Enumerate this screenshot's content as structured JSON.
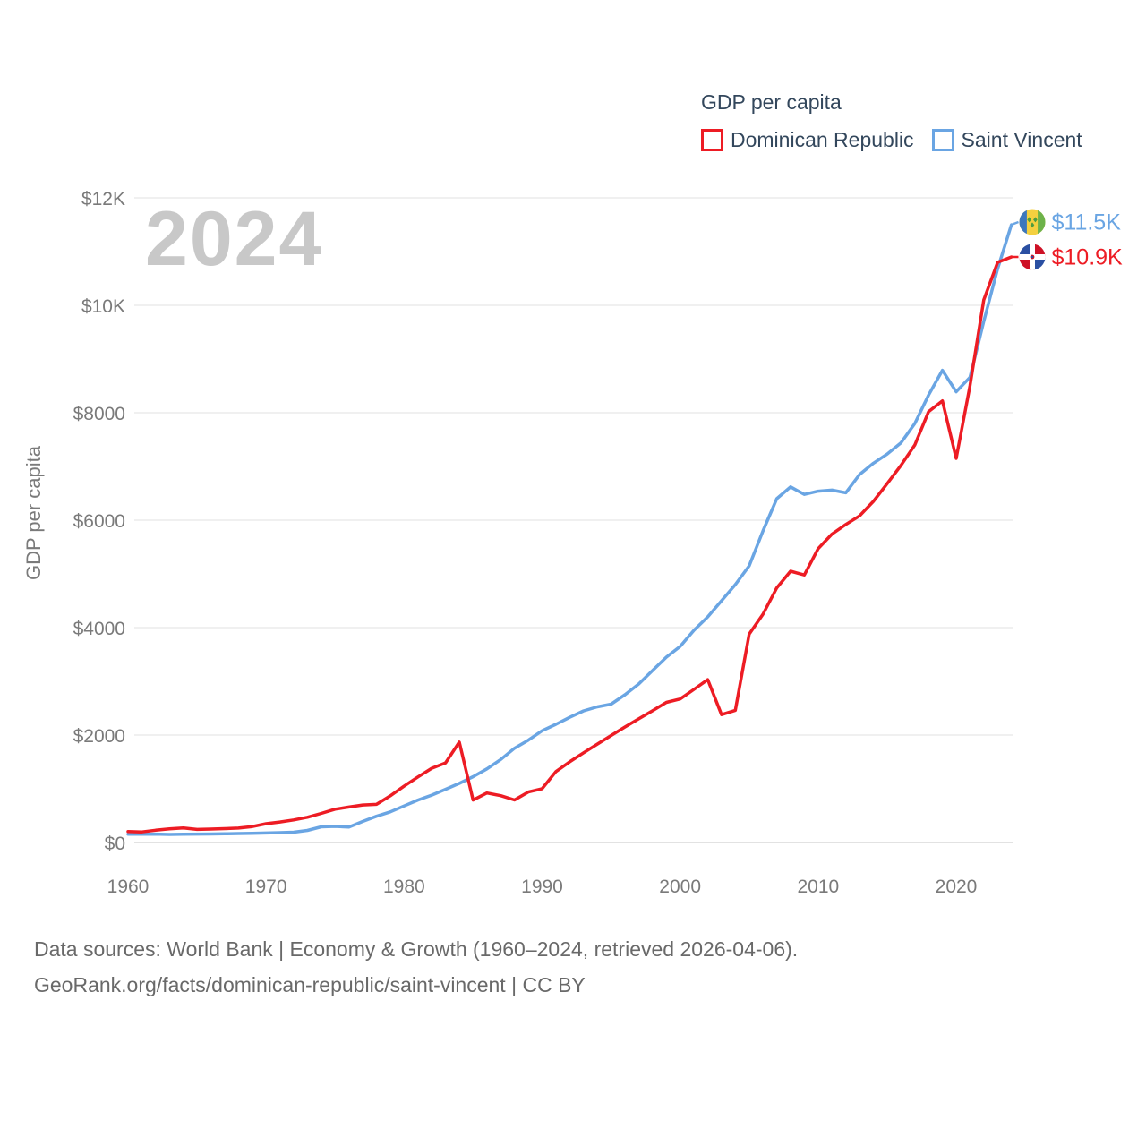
{
  "watermark": "2024",
  "legend": {
    "title": "GDP per capita",
    "items": [
      {
        "label": "Dominican Republic",
        "color": "#ed1c24"
      },
      {
        "label": "Saint Vincent",
        "color": "#6aa5e3"
      }
    ]
  },
  "axes": {
    "y_title": "GDP per capita",
    "y_ticks": [
      {
        "value": 0,
        "label": "$0"
      },
      {
        "value": 2000,
        "label": "$2000"
      },
      {
        "value": 4000,
        "label": "$4000"
      },
      {
        "value": 6000,
        "label": "$6000"
      },
      {
        "value": 8000,
        "label": "$8000"
      },
      {
        "value": 10000,
        "label": "$10K"
      },
      {
        "value": 12000,
        "label": "$12K"
      }
    ],
    "x_ticks": [
      {
        "value": 1960,
        "label": "1960"
      },
      {
        "value": 1970,
        "label": "1970"
      },
      {
        "value": 1980,
        "label": "1980"
      },
      {
        "value": 1990,
        "label": "1990"
      },
      {
        "value": 2000,
        "label": "2000"
      },
      {
        "value": 2010,
        "label": "2010"
      },
      {
        "value": 2020,
        "label": "2020"
      }
    ]
  },
  "chart_data": {
    "type": "line",
    "title": "GDP per capita",
    "xlabel": "",
    "ylabel": "GDP per capita",
    "xlim": [
      1960,
      2024
    ],
    "ylim": [
      0,
      12000
    ],
    "grid": true,
    "legend_position": "top-right",
    "x": [
      1960,
      1961,
      1962,
      1963,
      1964,
      1965,
      1966,
      1967,
      1968,
      1969,
      1970,
      1971,
      1972,
      1973,
      1974,
      1975,
      1976,
      1977,
      1978,
      1979,
      1980,
      1981,
      1982,
      1983,
      1984,
      1985,
      1986,
      1987,
      1988,
      1989,
      1990,
      1991,
      1992,
      1993,
      1994,
      1995,
      1996,
      1997,
      1998,
      1999,
      2000,
      2001,
      2002,
      2003,
      2004,
      2005,
      2006,
      2007,
      2008,
      2009,
      2010,
      2011,
      2012,
      2013,
      2014,
      2015,
      2016,
      2017,
      2018,
      2019,
      2020,
      2021,
      2022,
      2023,
      2024
    ],
    "series": [
      {
        "name": "Saint Vincent",
        "color": "#6aa5e3",
        "end_label": "$11.5K",
        "flag": "saint-vincent",
        "values": [
          155,
          153,
          156,
          150,
          153,
          156,
          159,
          162,
          166,
          170,
          176,
          183,
          192,
          225,
          292,
          300,
          286,
          392,
          488,
          570,
          680,
          790,
          882,
          990,
          1100,
          1225,
          1370,
          1545,
          1755,
          1905,
          2080,
          2200,
          2330,
          2450,
          2525,
          2575,
          2750,
          2950,
          3200,
          3450,
          3650,
          3950,
          4200,
          4500,
          4800,
          5150,
          5800,
          6400,
          6620,
          6480,
          6540,
          6560,
          6510,
          6850,
          7060,
          7230,
          7440,
          7800,
          8330,
          8790,
          8390,
          8660,
          9700,
          10680,
          11500
        ]
      },
      {
        "name": "Dominican Republic",
        "color": "#ed1c24",
        "end_label": "$10.9K",
        "flag": "dominican-republic",
        "values": [
          205,
          196,
          229,
          254,
          270,
          244,
          250,
          258,
          268,
          296,
          350,
          382,
          420,
          470,
          542,
          620,
          660,
          698,
          710,
          868,
          1048,
          1220,
          1382,
          1482,
          1868,
          790,
          922,
          872,
          792,
          940,
          1002,
          1320,
          1502,
          1670,
          1832,
          1992,
          2150,
          2302,
          2452,
          2608,
          2672,
          2850,
          3032,
          2380,
          2460,
          3880,
          4250,
          4740,
          5050,
          4980,
          5470,
          5742,
          5920,
          6080,
          6350,
          6680,
          7020,
          7400,
          8022,
          8222,
          7150,
          8502,
          10100,
          10800,
          10900
        ]
      }
    ]
  },
  "footer": {
    "line1": "Data sources: World Bank | Economy & Growth (1960–2024, retrieved 2026-04-06).",
    "line2": "GeoRank.org/facts/dominican-republic/saint-vincent | CC BY"
  },
  "colors": {
    "dominican_republic": "#ed1c24",
    "saint_vincent": "#6aa5e3",
    "legend_text": "#33475c",
    "tick_text": "#7a7a7a",
    "footer_text": "#696969",
    "watermark": "#c8c8c8",
    "gridline": "#ebebeb",
    "baseline": "#d9d9d9"
  }
}
